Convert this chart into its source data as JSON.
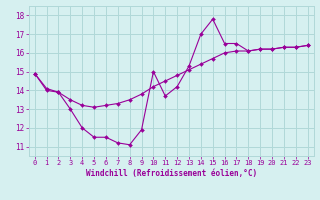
{
  "xlabel": "Windchill (Refroidissement éolien,°C)",
  "ylabel": "",
  "xlim": [
    -0.5,
    23.5
  ],
  "ylim": [
    10.5,
    18.5
  ],
  "yticks": [
    11,
    12,
    13,
    14,
    15,
    16,
    17,
    18
  ],
  "xticks": [
    0,
    1,
    2,
    3,
    4,
    5,
    6,
    7,
    8,
    9,
    10,
    11,
    12,
    13,
    14,
    15,
    16,
    17,
    18,
    19,
    20,
    21,
    22,
    23
  ],
  "bg_color": "#d6f0f0",
  "grid_color": "#b0d8d8",
  "line_color": "#990099",
  "line1_x": [
    0,
    1,
    2,
    3,
    4,
    5,
    6,
    7,
    8,
    9,
    10,
    11,
    12,
    13,
    14,
    15,
    16,
    17,
    18,
    19,
    20,
    21,
    22,
    23
  ],
  "line1_y": [
    14.9,
    14.0,
    13.9,
    13.0,
    12.0,
    11.5,
    11.5,
    11.2,
    11.1,
    11.9,
    15.0,
    13.7,
    14.2,
    15.3,
    17.0,
    17.8,
    16.5,
    16.5,
    16.1,
    16.2,
    16.2,
    16.3,
    16.3,
    16.4
  ],
  "line2_x": [
    0,
    1,
    2,
    3,
    4,
    5,
    6,
    7,
    8,
    9,
    10,
    11,
    12,
    13,
    14,
    15,
    16,
    17,
    18,
    19,
    20,
    21,
    22,
    23
  ],
  "line2_y": [
    14.9,
    14.1,
    13.9,
    13.5,
    13.2,
    13.1,
    13.2,
    13.3,
    13.5,
    13.8,
    14.2,
    14.5,
    14.8,
    15.1,
    15.4,
    15.7,
    16.0,
    16.1,
    16.1,
    16.2,
    16.2,
    16.3,
    16.3,
    16.4
  ],
  "marker_size": 2.0,
  "linewidth": 0.8,
  "tick_fontsize": 5.0,
  "xlabel_fontsize": 5.5
}
